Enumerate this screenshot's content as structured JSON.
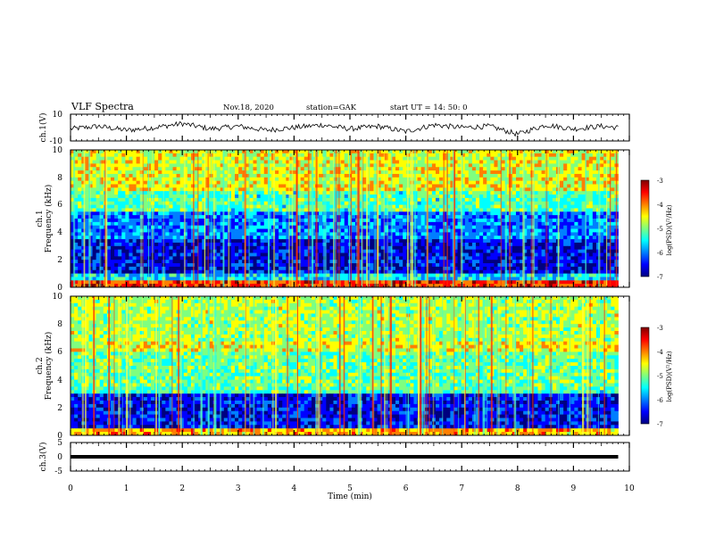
{
  "header": {
    "title": "VLF Spectra",
    "date": "Nov.18, 2020",
    "station": "station=GAK",
    "start": "start  UT =   14: 50: 0"
  },
  "chart_data": [
    {
      "id": "ch1-waveform",
      "type": "line",
      "ylabel": "ch.1(V)",
      "ylim": [
        -10,
        10
      ],
      "yticks": [
        "10",
        "-10"
      ],
      "xlim": [
        0,
        10
      ],
      "series": [
        {
          "x": [
            0,
            0.5,
            1,
            1.5,
            2,
            2.5,
            3,
            3.5,
            4,
            4.5,
            5,
            5.5,
            6,
            6.5,
            7,
            7.5,
            8,
            8.5,
            9,
            9.5,
            9.8
          ],
          "values": [
            -1,
            1,
            -2,
            0,
            3,
            -1,
            1,
            -2,
            0,
            2,
            -1,
            1,
            -3,
            2,
            0,
            1,
            -5,
            2,
            -1,
            1,
            0
          ]
        }
      ]
    },
    {
      "id": "ch1-spectrogram",
      "type": "heatmap",
      "ylabel": "ch.1",
      "ylabel2": "Frequency (kHz)",
      "ylim": [
        0,
        10
      ],
      "yticks": [
        "0",
        "2",
        "4",
        "6",
        "8",
        "10"
      ],
      "xlim": [
        0,
        10
      ],
      "colorbar": {
        "label": "log(PSD)(V²/Hz)",
        "range": [
          -7,
          -3
        ],
        "ticks": [
          "-3",
          "-4",
          "-5",
          "-6",
          "-7"
        ]
      }
    },
    {
      "id": "ch2-spectrogram",
      "type": "heatmap",
      "ylabel": "ch.2",
      "ylabel2": "Frequency (kHz)",
      "ylim": [
        0,
        10
      ],
      "yticks": [
        "0",
        "2",
        "4",
        "6",
        "8",
        "10"
      ],
      "xlim": [
        0,
        10
      ],
      "colorbar": {
        "label": "log(PSD)(V²/Hz)",
        "range": [
          -7,
          -3
        ],
        "ticks": [
          "-3",
          "-4",
          "-5",
          "-6",
          "-7"
        ]
      }
    },
    {
      "id": "ch3-waveform",
      "type": "line",
      "ylabel": "ch.3(V)",
      "ylim": [
        -5,
        5
      ],
      "yticks": [
        "5",
        "0",
        "-5"
      ],
      "xlim": [
        0,
        10
      ],
      "series": [
        {
          "x": [
            0,
            9.8
          ],
          "values": [
            0,
            0
          ]
        }
      ]
    }
  ],
  "xaxis": {
    "label": "Time  (min)",
    "ticks": [
      "0",
      "1",
      "2",
      "3",
      "4",
      "5",
      "6",
      "7",
      "8",
      "9",
      "10"
    ]
  },
  "colors": {
    "colormap": [
      "#00007f",
      "#0000ff",
      "#007fff",
      "#00ffff",
      "#7fff7f",
      "#ffff00",
      "#ff7f00",
      "#ff0000",
      "#7f0000"
    ]
  }
}
